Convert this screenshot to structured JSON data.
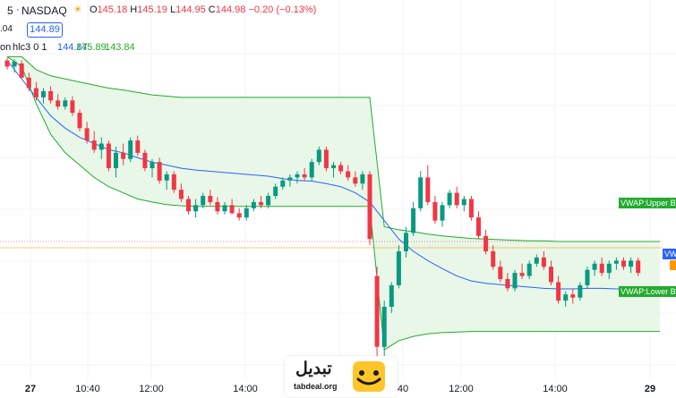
{
  "legend": {
    "interval": "5",
    "exchange": "NASDAQ",
    "open_label": "O",
    "open": "145.18",
    "high_label": "H",
    "high": "145.19",
    "low_label": "L",
    "low": "144.95",
    "close_label": "C",
    "close": "144.98",
    "change": "−0.20 (−0.13%)",
    "left_value": ".04",
    "price_box": "144.89",
    "indicator_prefix": "on",
    "indicator_params": "hlc3 0 1",
    "vwap_value": "144.87",
    "upper_value": "145.89",
    "lower_value": "143.84"
  },
  "time_axis": {
    "labels": [
      "27",
      "10:40",
      "12:00",
      "14:00",
      "40",
      "12:00",
      "14:00",
      "29"
    ]
  },
  "tags": {
    "upper": "VWAP:Upper Ba",
    "lower": "VWAP:Lower Bar",
    "right_edge": "VW"
  },
  "watermark": {
    "brand_fa": "تبدیل",
    "brand_en": "tabdeal.org"
  },
  "colors": {
    "up": "#089981",
    "down": "#f23645",
    "vwap": "#2962ff",
    "bands": "#22ab2e",
    "band_fill": "#e8f7e8"
  },
  "chart_data": {
    "type": "candlestick",
    "series": [
      {
        "name": "NASDAQ",
        "type": "candlestick",
        "values": [
          [
            146.2,
            146.24,
            146.05,
            146.1
          ],
          [
            146.1,
            146.22,
            146.0,
            146.18
          ],
          [
            146.15,
            146.2,
            145.9,
            145.92
          ],
          [
            145.92,
            146.0,
            145.7,
            145.75
          ],
          [
            145.75,
            145.85,
            145.55,
            145.6
          ],
          [
            145.6,
            145.75,
            145.5,
            145.7
          ],
          [
            145.7,
            145.78,
            145.5,
            145.55
          ],
          [
            145.55,
            145.65,
            145.4,
            145.45
          ],
          [
            145.45,
            145.6,
            145.4,
            145.55
          ],
          [
            145.55,
            145.62,
            145.3,
            145.35
          ],
          [
            145.35,
            145.4,
            145.05,
            145.1
          ],
          [
            145.1,
            145.2,
            144.85,
            144.9
          ],
          [
            144.9,
            145.05,
            144.7,
            144.75
          ],
          [
            144.75,
            144.95,
            144.6,
            144.85
          ],
          [
            144.85,
            144.9,
            144.4,
            144.45
          ],
          [
            144.45,
            144.8,
            144.3,
            144.7
          ],
          [
            144.7,
            144.85,
            144.5,
            144.6
          ],
          [
            144.6,
            144.95,
            144.55,
            144.9
          ],
          [
            144.9,
            144.98,
            144.65,
            144.7
          ],
          [
            144.7,
            144.75,
            144.4,
            144.45
          ],
          [
            144.45,
            144.6,
            144.3,
            144.55
          ],
          [
            144.55,
            144.62,
            144.2,
            144.25
          ],
          [
            144.25,
            144.4,
            144.1,
            144.35
          ],
          [
            144.35,
            144.4,
            144.05,
            144.1
          ],
          [
            144.1,
            144.2,
            143.9,
            143.95
          ],
          [
            143.95,
            144.0,
            143.7,
            143.75
          ],
          [
            143.75,
            143.95,
            143.65,
            143.85
          ],
          [
            143.85,
            144.05,
            143.8,
            144.0
          ],
          [
            144.0,
            144.1,
            143.85,
            143.9
          ],
          [
            143.9,
            143.98,
            143.7,
            143.75
          ],
          [
            143.75,
            143.9,
            143.7,
            143.85
          ],
          [
            143.85,
            143.95,
            143.7,
            143.72
          ],
          [
            143.72,
            143.8,
            143.6,
            143.65
          ],
          [
            143.65,
            143.85,
            143.6,
            143.8
          ],
          [
            143.8,
            143.95,
            143.75,
            143.9
          ],
          [
            143.9,
            144.0,
            143.8,
            143.85
          ],
          [
            143.85,
            144.05,
            143.8,
            144.0
          ],
          [
            144.0,
            144.2,
            143.95,
            144.15
          ],
          [
            144.15,
            144.3,
            144.1,
            144.25
          ],
          [
            144.25,
            144.35,
            144.15,
            144.3
          ],
          [
            144.3,
            144.4,
            144.2,
            144.35
          ],
          [
            144.35,
            144.45,
            144.25,
            144.3
          ],
          [
            144.3,
            144.6,
            144.25,
            144.55
          ],
          [
            144.55,
            144.8,
            144.5,
            144.75
          ],
          [
            144.75,
            144.8,
            144.4,
            144.45
          ],
          [
            144.45,
            144.55,
            144.3,
            144.5
          ],
          [
            144.5,
            144.55,
            144.35,
            144.4
          ],
          [
            144.4,
            144.5,
            144.25,
            144.3
          ],
          [
            144.3,
            144.4,
            144.15,
            144.2
          ],
          [
            144.2,
            144.4,
            144.1,
            144.35
          ],
          [
            144.35,
            144.4,
            143.2,
            143.3
          ],
          [
            142.7,
            142.85,
            141.4,
            141.55
          ],
          [
            141.55,
            142.3,
            141.4,
            142.2
          ],
          [
            142.2,
            142.6,
            142.1,
            142.55
          ],
          [
            142.55,
            143.2,
            142.5,
            143.1
          ],
          [
            143.1,
            143.5,
            143.0,
            143.4
          ],
          [
            143.4,
            143.9,
            143.35,
            143.8
          ],
          [
            143.8,
            144.4,
            143.75,
            144.3
          ],
          [
            144.3,
            144.5,
            143.85,
            143.9
          ],
          [
            143.9,
            144.0,
            143.55,
            143.6
          ],
          [
            143.6,
            143.9,
            143.5,
            143.85
          ],
          [
            143.85,
            144.1,
            143.8,
            144.05
          ],
          [
            144.05,
            144.15,
            143.8,
            143.85
          ],
          [
            143.85,
            144.0,
            143.75,
            143.95
          ],
          [
            143.95,
            144.0,
            143.6,
            143.65
          ],
          [
            143.65,
            143.75,
            143.3,
            143.35
          ],
          [
            143.35,
            143.45,
            143.05,
            143.1
          ],
          [
            143.1,
            143.2,
            142.8,
            142.85
          ],
          [
            142.85,
            142.95,
            142.6,
            142.65
          ],
          [
            142.65,
            142.75,
            142.45,
            142.5
          ],
          [
            142.5,
            142.8,
            142.45,
            142.75
          ],
          [
            142.75,
            142.9,
            142.65,
            142.7
          ],
          [
            142.7,
            142.95,
            142.65,
            142.9
          ],
          [
            142.9,
            143.05,
            142.85,
            143.0
          ],
          [
            143.0,
            143.1,
            142.8,
            142.85
          ],
          [
            142.85,
            142.95,
            142.55,
            142.6
          ],
          [
            142.6,
            142.7,
            142.25,
            142.3
          ],
          [
            142.3,
            142.45,
            142.2,
            142.4
          ],
          [
            142.4,
            142.5,
            142.25,
            142.35
          ],
          [
            142.35,
            142.6,
            142.3,
            142.55
          ],
          [
            142.55,
            142.85,
            142.5,
            142.8
          ],
          [
            142.8,
            142.95,
            142.7,
            142.9
          ],
          [
            142.9,
            143.0,
            142.7,
            142.75
          ],
          [
            142.75,
            142.95,
            142.65,
            142.9
          ],
          [
            142.9,
            143.0,
            142.8,
            142.95
          ],
          [
            142.95,
            143.0,
            142.8,
            142.85
          ],
          [
            142.85,
            143.0,
            142.75,
            142.95
          ],
          [
            142.95,
            143.0,
            142.7,
            142.75
          ]
        ]
      },
      {
        "name": "VWAP",
        "type": "line",
        "values": [
          146.2,
          145.9,
          145.6,
          145.3,
          145.1,
          144.95,
          144.85,
          144.75,
          144.7,
          144.62,
          144.55,
          144.5,
          144.45,
          144.42,
          144.4,
          144.38,
          144.36,
          144.34,
          144.32,
          144.28,
          144.25,
          144.24,
          144.2,
          144.15,
          144.05,
          143.9,
          143.6,
          143.3,
          143.1,
          142.95,
          142.82,
          142.7,
          142.62,
          142.58,
          142.56,
          142.54,
          142.52,
          142.5,
          142.49,
          142.49,
          142.5,
          142.5,
          142.49,
          142.49,
          142.5,
          142.5
        ]
      },
      {
        "name": "Upper Band",
        "type": "line",
        "values": [
          146.26,
          146.26,
          146.05,
          145.95,
          145.9,
          145.85,
          145.8,
          145.75,
          145.72,
          145.68,
          145.64,
          145.62,
          145.6,
          145.6,
          145.6,
          145.6,
          145.6,
          145.6,
          145.6,
          145.6,
          145.6,
          145.6,
          145.6,
          145.6,
          145.6,
          145.6,
          143.5,
          143.45,
          143.42,
          143.38,
          143.35,
          143.33,
          143.31,
          143.3,
          143.29,
          143.28,
          143.27,
          143.27,
          143.26,
          143.26,
          143.26,
          143.26,
          143.26,
          143.26,
          143.26,
          143.26
        ]
      },
      {
        "name": "Lower Band",
        "type": "line",
        "values": [
          146.26,
          146.1,
          145.5,
          145.0,
          144.7,
          144.5,
          144.3,
          144.15,
          144.05,
          143.95,
          143.9,
          143.86,
          143.84,
          143.83,
          143.83,
          143.83,
          143.83,
          143.83,
          143.83,
          143.83,
          143.83,
          143.83,
          143.83,
          143.83,
          143.83,
          143.83,
          141.5,
          141.65,
          141.72,
          141.76,
          141.78,
          141.79,
          141.8,
          141.8,
          141.8,
          141.8,
          141.8,
          141.8,
          141.8,
          141.8,
          141.8,
          141.8,
          141.8,
          141.8,
          141.8,
          141.8
        ]
      }
    ],
    "ylim": [
      141.3,
      146.6
    ],
    "grid": true,
    "legend": "top-left"
  }
}
